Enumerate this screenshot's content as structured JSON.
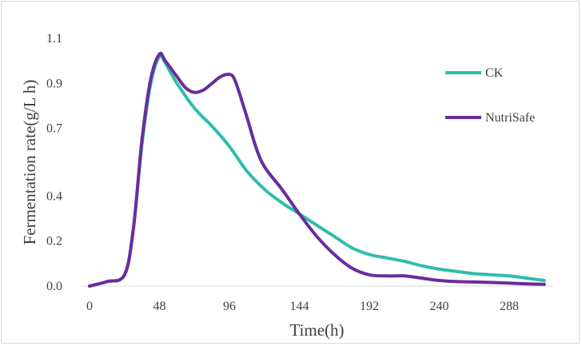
{
  "chart_data": {
    "type": "line",
    "title": "",
    "xlabel": "Time(h)",
    "ylabel": "Fermentation rate(g/L h)",
    "xlim": [
      -10,
      310
    ],
    "ylim": [
      0,
      1.1
    ],
    "x_ticks": [
      0,
      48,
      96,
      144,
      192,
      240,
      288
    ],
    "y_ticks": [
      0.0,
      0.2,
      0.4,
      0.7,
      0.9,
      1.1
    ],
    "y_tick_labels": [
      "0.0",
      "0.2",
      "0.4",
      "0.7",
      "0.9",
      "1.1"
    ],
    "grid": false,
    "legend_position": "right",
    "series": [
      {
        "name": "CK",
        "color": "#2ebdad",
        "x": [
          0,
          12,
          24,
          30,
          36,
          42,
          48,
          52,
          60,
          72,
          84,
          96,
          108,
          120,
          132,
          144,
          156,
          168,
          180,
          192,
          204,
          216,
          228,
          240,
          252,
          264,
          276,
          288,
          300,
          312
        ],
        "y": [
          0.0,
          0.02,
          0.05,
          0.25,
          0.63,
          0.9,
          1.02,
          0.99,
          0.9,
          0.79,
          0.71,
          0.62,
          0.51,
          0.43,
          0.37,
          0.32,
          0.27,
          0.22,
          0.17,
          0.14,
          0.125,
          0.11,
          0.09,
          0.075,
          0.065,
          0.055,
          0.05,
          0.045,
          0.035,
          0.025
        ]
      },
      {
        "name": "NutriSafe",
        "color": "#6a2c9c",
        "x": [
          0,
          12,
          24,
          30,
          36,
          42,
          48,
          52,
          60,
          66,
          72,
          78,
          84,
          90,
          96,
          100,
          108,
          114,
          120,
          132,
          144,
          156,
          168,
          180,
          192,
          204,
          216,
          228,
          240,
          252,
          264,
          276,
          288,
          300,
          312
        ],
        "y": [
          0.0,
          0.02,
          0.05,
          0.25,
          0.65,
          0.92,
          1.03,
          1.0,
          0.93,
          0.88,
          0.86,
          0.87,
          0.9,
          0.93,
          0.94,
          0.91,
          0.75,
          0.62,
          0.53,
          0.43,
          0.32,
          0.22,
          0.14,
          0.08,
          0.05,
          0.045,
          0.045,
          0.035,
          0.025,
          0.02,
          0.018,
          0.016,
          0.013,
          0.01,
          0.008
        ]
      }
    ]
  }
}
